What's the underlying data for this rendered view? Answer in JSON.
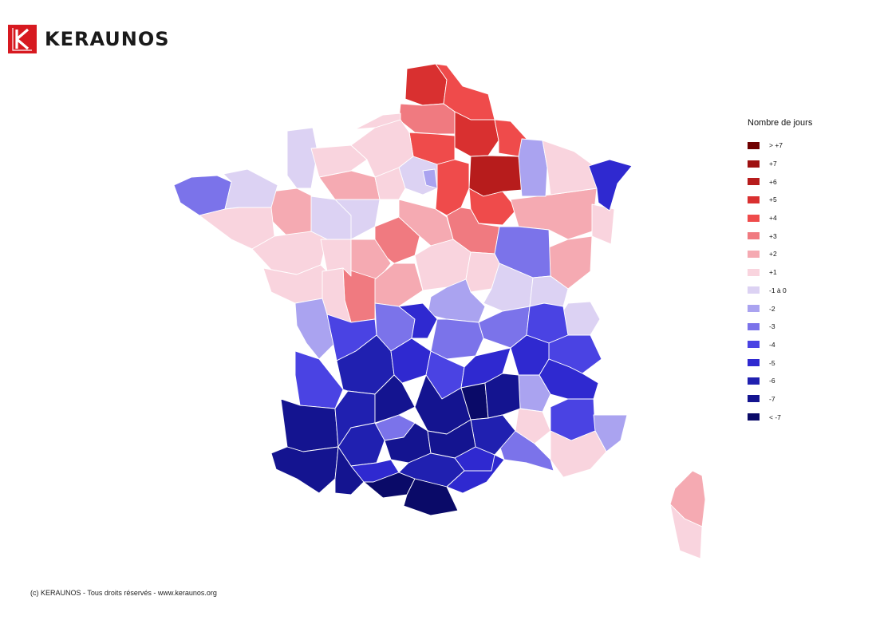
{
  "brand": {
    "name": "KERAUNOS",
    "color": "#d71920",
    "logo_icon": "keraunos-k-logo"
  },
  "legend": {
    "title": "Nombre de jours",
    "classes": [
      {
        "label": "> +7",
        "color": "#6f0000"
      },
      {
        "label": "+7",
        "color": "#9e1010"
      },
      {
        "label": "+6",
        "color": "#b71c1c"
      },
      {
        "label": "+5",
        "color": "#d93030"
      },
      {
        "label": "+4",
        "color": "#ef4b4b"
      },
      {
        "label": "+3",
        "color": "#f07a80"
      },
      {
        "label": "+2",
        "color": "#f5aab2"
      },
      {
        "label": "+1",
        "color": "#f9d4de"
      },
      {
        "label": "-1 à 0",
        "color": "#dcd2f3"
      },
      {
        "label": "-2",
        "color": "#aaa3f0"
      },
      {
        "label": "-3",
        "color": "#7b73ea"
      },
      {
        "label": "-4",
        "color": "#4a43e3"
      },
      {
        "label": "-5",
        "color": "#2f29d0"
      },
      {
        "label": "-6",
        "color": "#2020b0"
      },
      {
        "label": "-7",
        "color": "#141490"
      },
      {
        "label": "< -7",
        "color": "#0a0a68"
      }
    ]
  },
  "map": {
    "subject": "France - écart du nombre de jours par département",
    "regions_shown": [
      "France métropolitaine",
      "Corse"
    ]
  },
  "footer": {
    "copyright": "(c) KERAUNOS - Tous droits réservés - www.keraunos.org"
  }
}
